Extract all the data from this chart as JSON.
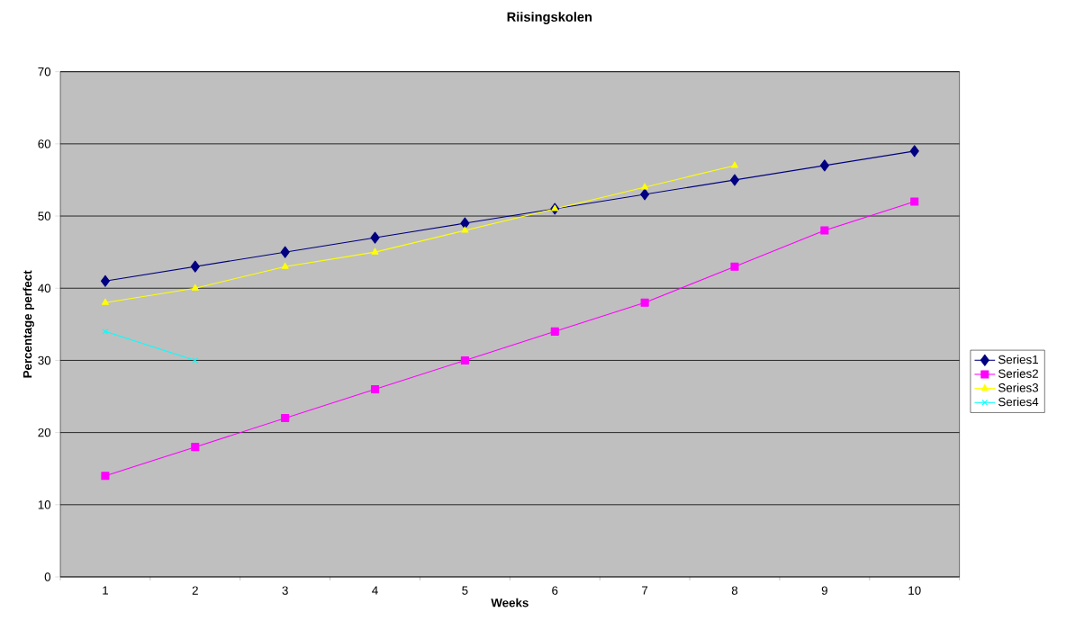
{
  "chart_data": {
    "type": "line",
    "title": "Riisingskolen",
    "xlabel": "Weeks",
    "ylabel": "Percentage perfect",
    "categories": [
      "1",
      "2",
      "3",
      "4",
      "5",
      "6",
      "7",
      "8",
      "9",
      "10"
    ],
    "series": [
      {
        "name": "Series1",
        "color": "#000080",
        "marker": "diamond",
        "values": [
          41,
          43,
          45,
          47,
          49,
          51,
          53,
          55,
          57,
          59
        ]
      },
      {
        "name": "Series2",
        "color": "#ff00ff",
        "marker": "square",
        "values": [
          14,
          18,
          22,
          26,
          30,
          34,
          38,
          43,
          48,
          52
        ]
      },
      {
        "name": "Series3",
        "color": "#ffff00",
        "marker": "triangle",
        "values": [
          38,
          40,
          43,
          45,
          48,
          51,
          54,
          57,
          null,
          null
        ]
      },
      {
        "name": "Series4",
        "color": "#00ffff",
        "marker": "cross",
        "values": [
          34,
          30,
          null,
          null,
          null,
          null,
          null,
          null,
          null,
          null
        ]
      }
    ],
    "ylim": [
      0,
      70
    ],
    "yticks": [
      0,
      10,
      20,
      30,
      40,
      50,
      60,
      70
    ],
    "grid": "y",
    "legend": "right"
  }
}
